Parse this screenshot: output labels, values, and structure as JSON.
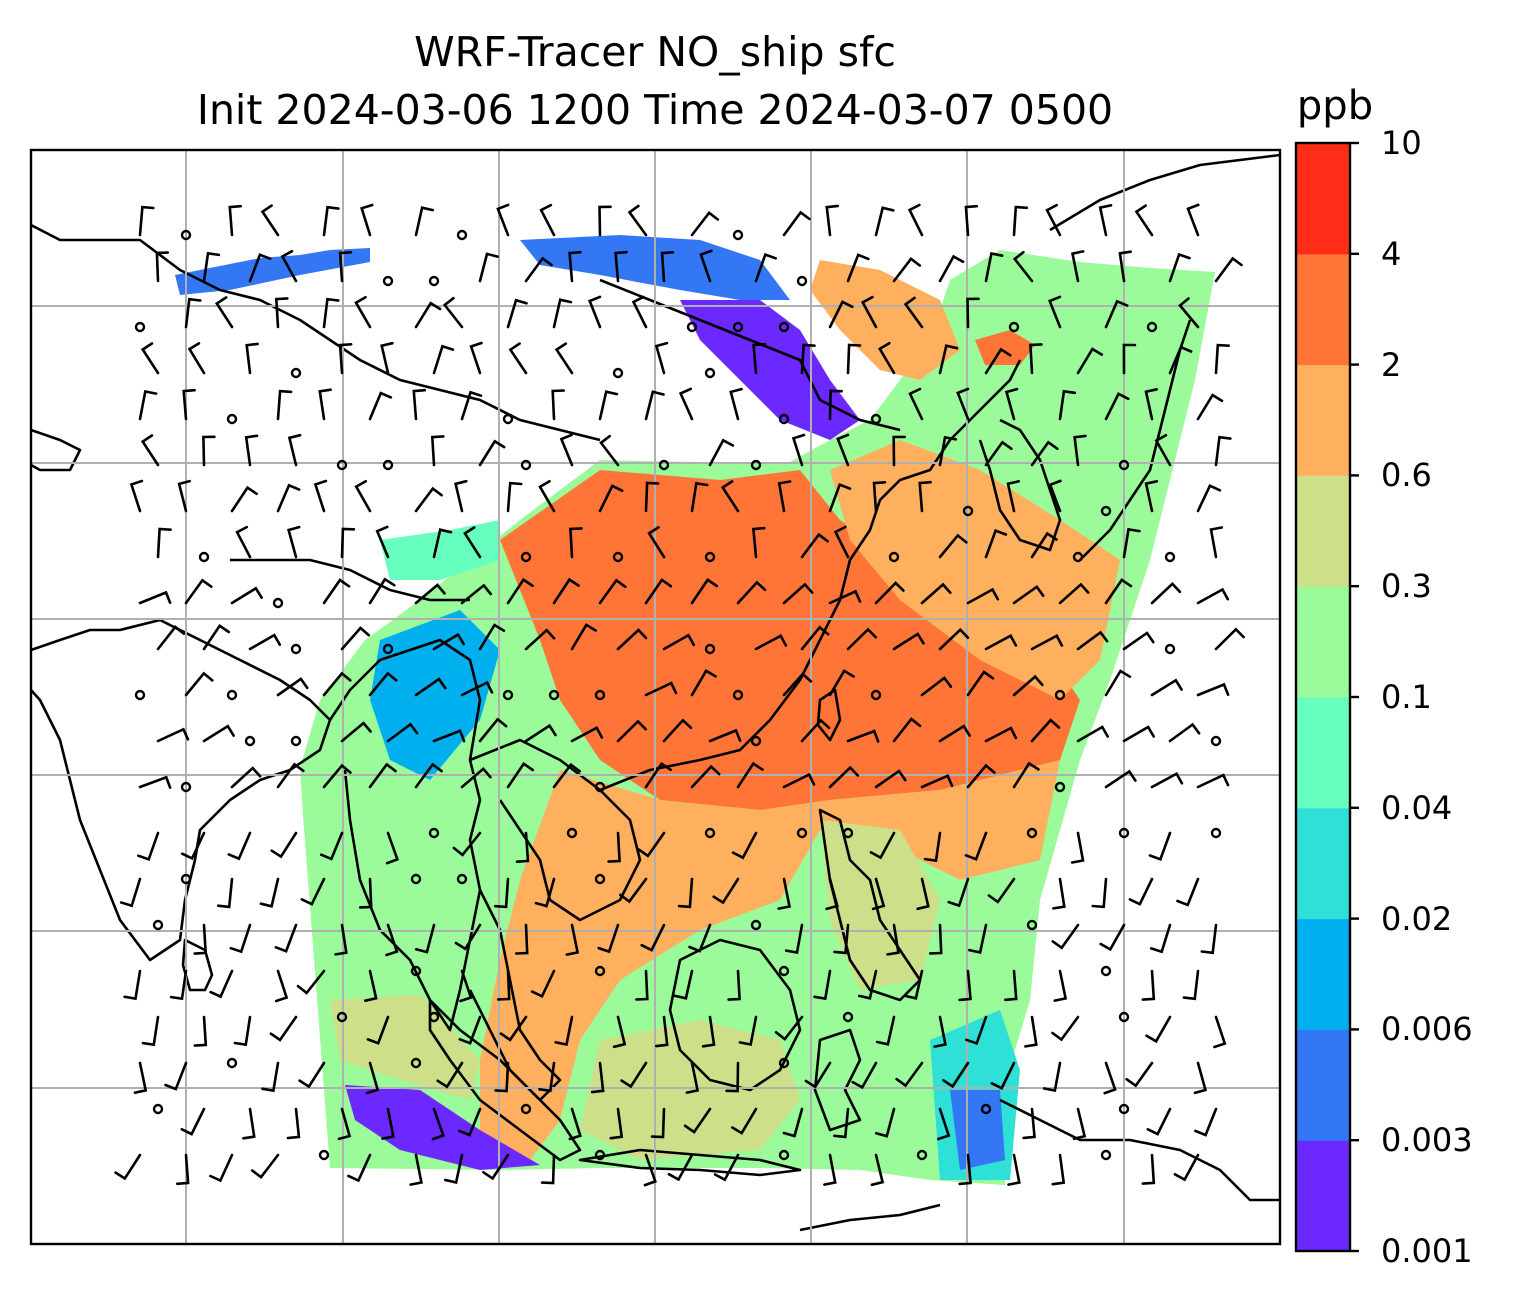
{
  "title": {
    "line1": "WRF-Tracer NO_ship sfc",
    "line2": "Init 2024-03-06 1200 Time 2024-03-07 0500"
  },
  "colorbar": {
    "unit": "ppb",
    "tick_labels": [
      "0.001",
      "0.003",
      "0.006",
      "0.02",
      "0.04",
      "0.1",
      "0.3",
      "0.6",
      "2",
      "4",
      "10"
    ],
    "colors": [
      "#6b28ff",
      "#3377f5",
      "#00b0ee",
      "#2ee0d5",
      "#66ffc0",
      "#9bfb9b",
      "#cde089",
      "#ffb05e",
      "#ff7538",
      "#ff2c18"
    ]
  },
  "map": {
    "projection": "lat-lon with gridlines",
    "gridlines": true,
    "wind_barbs": true,
    "coastlines": true,
    "region": "East Asia, South-East Asia and western Pacific"
  }
}
